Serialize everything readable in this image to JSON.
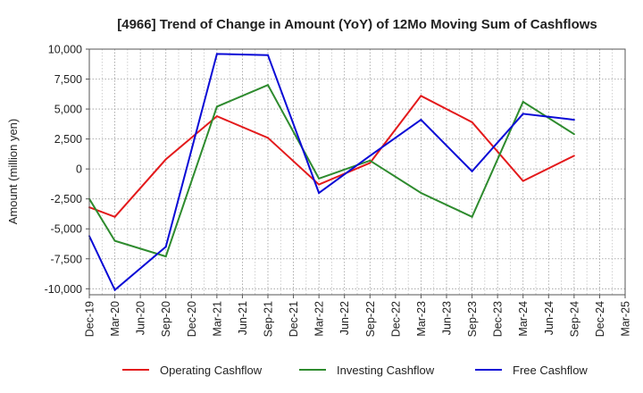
{
  "chart_data": {
    "type": "line",
    "title": "[4966]  Trend of Change in Amount (YoY) of 12Mo Moving Sum of Cashflows",
    "xlabel": "",
    "ylabel": "Amount (million yen)",
    "ylim": [
      -10500,
      10000
    ],
    "yticks": [
      10000,
      7500,
      5000,
      2500,
      0,
      -2500,
      -5000,
      -7500,
      -10000
    ],
    "ytick_labels": [
      "10,000",
      "7,500",
      "5,000",
      "2,500",
      "0",
      "-2,500",
      "-5,000",
      "-7,500",
      "-10,000"
    ],
    "categories": [
      "Dec-19",
      "Mar-20",
      "Jun-20",
      "Sep-20",
      "Dec-20",
      "Mar-21",
      "Jun-21",
      "Sep-21",
      "Dec-21",
      "Mar-22",
      "Jun-22",
      "Sep-22",
      "Dec-22",
      "Mar-23",
      "Jun-23",
      "Sep-23",
      "Dec-23",
      "Mar-24",
      "Jun-24",
      "Sep-24",
      "Dec-24",
      "Mar-25"
    ],
    "grid": true,
    "legend_position": "bottom",
    "series": [
      {
        "name": "Operating Cashflow",
        "color": "#e31a1c",
        "values": [
          -3200,
          -4000,
          null,
          800,
          null,
          4400,
          null,
          2600,
          null,
          -1300,
          null,
          500,
          null,
          6100,
          null,
          3900,
          null,
          -1000,
          null,
          1100,
          null,
          null
        ]
      },
      {
        "name": "Investing Cashflow",
        "color": "#2e8b2e",
        "values": [
          -2500,
          -6000,
          null,
          -7300,
          null,
          5200,
          null,
          7000,
          null,
          -800,
          null,
          700,
          null,
          -2000,
          null,
          -4000,
          null,
          5600,
          null,
          2900,
          null,
          null
        ]
      },
      {
        "name": "Free Cashflow",
        "color": "#0a0ad6",
        "values": [
          -5600,
          -10100,
          null,
          -6500,
          null,
          9600,
          null,
          9500,
          null,
          -2000,
          null,
          1100,
          null,
          4100,
          null,
          -200,
          null,
          4600,
          null,
          4100,
          null,
          null
        ]
      }
    ]
  }
}
